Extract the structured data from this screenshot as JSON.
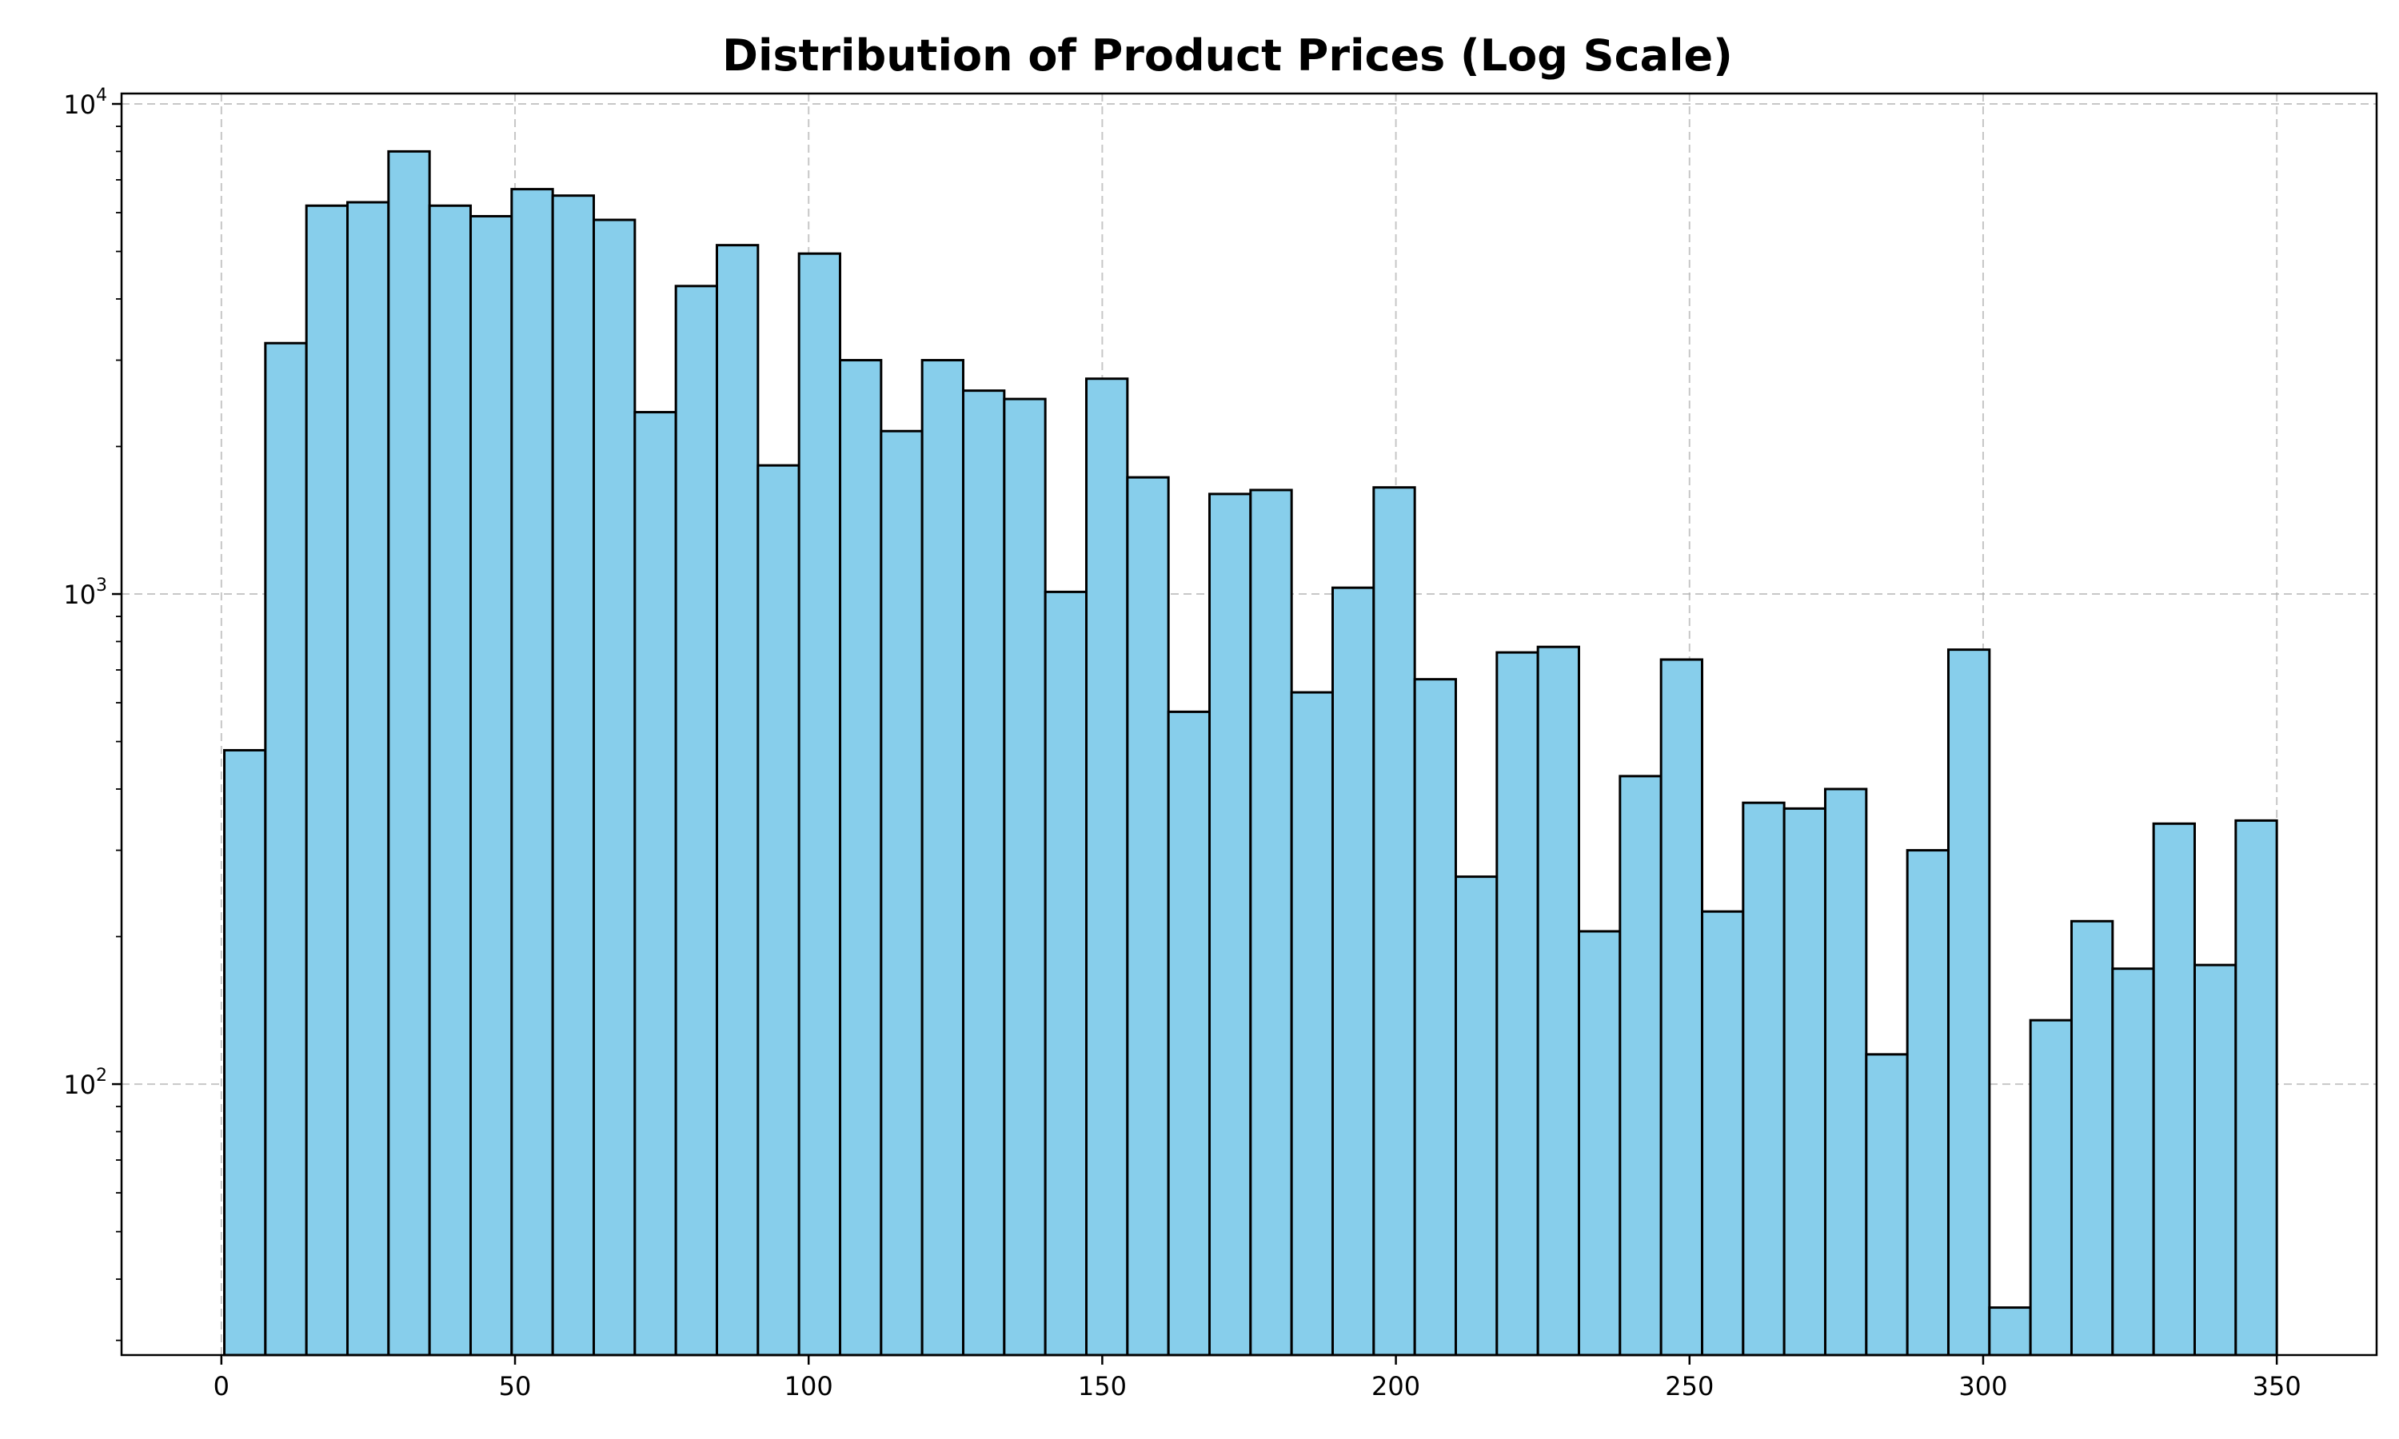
{
  "chart_data": {
    "type": "bar",
    "title": "Distribution of Product Prices (Log Scale)",
    "xlabel": "",
    "ylabel": "",
    "y_scale": "log",
    "xlim": [
      -17,
      367
    ],
    "ylim": [
      28,
      10500
    ],
    "grid": true,
    "x_ticks": [
      0,
      50,
      100,
      150,
      200,
      250,
      300,
      350
    ],
    "x_tick_labels": [
      "0",
      "50",
      "100",
      "150",
      "200",
      "250",
      "300",
      "350"
    ],
    "y_ticks": [
      {
        "value": 100,
        "base": "10",
        "exponent": "2"
      },
      {
        "value": 1000,
        "base": "10",
        "exponent": "3"
      },
      {
        "value": 10000,
        "base": "10",
        "exponent": "4"
      }
    ],
    "bin_edges": [
      0.5,
      7.49,
      14.48,
      21.47,
      28.46,
      35.45,
      42.44,
      49.43,
      56.42,
      63.41,
      70.4,
      77.39,
      84.38,
      91.37,
      98.36,
      105.35,
      112.34,
      119.33,
      126.32,
      133.31,
      140.3,
      147.29,
      154.28,
      161.27,
      168.26,
      175.25,
      182.24,
      189.23,
      196.22,
      203.21,
      210.2,
      217.19,
      224.18,
      231.17,
      238.16,
      245.15,
      252.14,
      259.13,
      266.12,
      273.11,
      280.1,
      287.09,
      294.08,
      301.07,
      308.06,
      315.05,
      322.04,
      329.03,
      336.02,
      343.01,
      350.0
    ],
    "counts": [
      480,
      3250,
      6200,
      6300,
      8000,
      6200,
      5900,
      6700,
      6500,
      5800,
      2350,
      4250,
      5150,
      1830,
      4950,
      3000,
      2150,
      3000,
      2600,
      2500,
      1010,
      2750,
      1730,
      575,
      1600,
      1630,
      630,
      1030,
      1650,
      670,
      265,
      760,
      780,
      205,
      425,
      735,
      225,
      375,
      365,
      400,
      115,
      300,
      770,
      35,
      135,
      215,
      172,
      340,
      175,
      345
    ],
    "colors": {
      "bar_fill": "#87ceeb",
      "bar_edge": "#000000",
      "grid": "#b0b0b0"
    }
  }
}
